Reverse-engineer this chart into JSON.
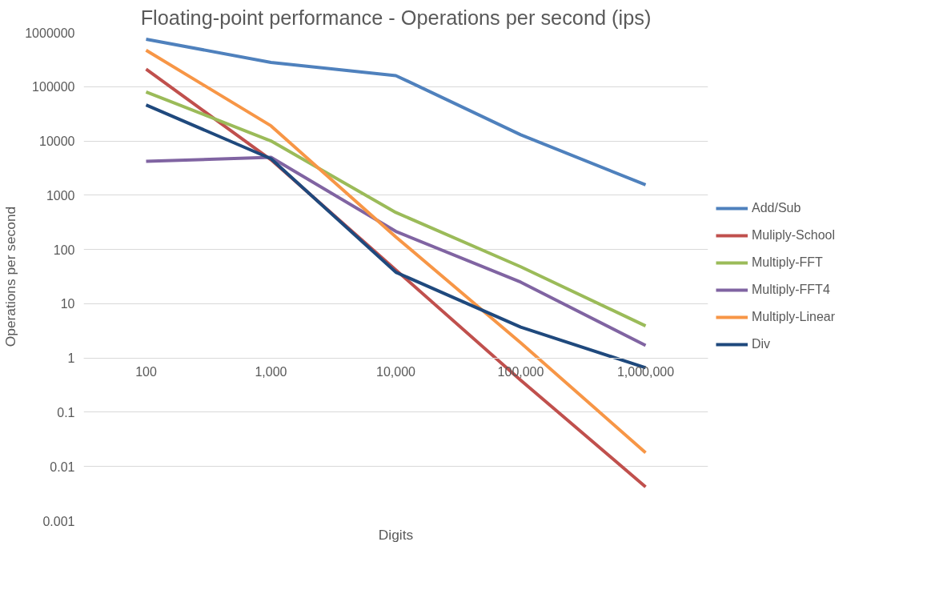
{
  "chart_data": {
    "type": "line",
    "title": "Floating-point performance - Operations per second (ips)",
    "xlabel": "Digits",
    "ylabel": "Operations per second",
    "categories": [
      "100",
      "1,000",
      "10,000",
      "100,000",
      "1,000,000"
    ],
    "series": [
      {
        "name": "Add/Sub",
        "color": "#4f81bd",
        "values": [
          750000,
          280000,
          160000,
          13000,
          1550
        ]
      },
      {
        "name": "Muliply-School",
        "color": "#c0504d",
        "values": [
          210000,
          4500,
          42,
          0.39,
          0.0042
        ]
      },
      {
        "name": "Multiply-FFT",
        "color": "#9bbb59",
        "values": [
          80000,
          10000,
          480,
          48,
          3.9
        ]
      },
      {
        "name": "Multiply-FFT4",
        "color": "#8064a2",
        "values": [
          4200,
          5000,
          215,
          25,
          1.7
        ]
      },
      {
        "name": "Multiply-Linear",
        "color": "#f79646",
        "values": [
          470000,
          19000,
          170,
          1.9,
          0.018
        ]
      },
      {
        "name": "Div",
        "color": "#1f497d",
        "values": [
          46000,
          4700,
          38,
          3.7,
          0.66
        ]
      }
    ],
    "ylim": [
      0.001,
      1000000
    ],
    "yticks": [
      0.001,
      0.01,
      0.1,
      1,
      10,
      100,
      1000,
      10000,
      100000,
      1000000
    ],
    "log": true,
    "grid": "y",
    "legend": "right",
    "marker": "none",
    "line_style": "solid"
  }
}
